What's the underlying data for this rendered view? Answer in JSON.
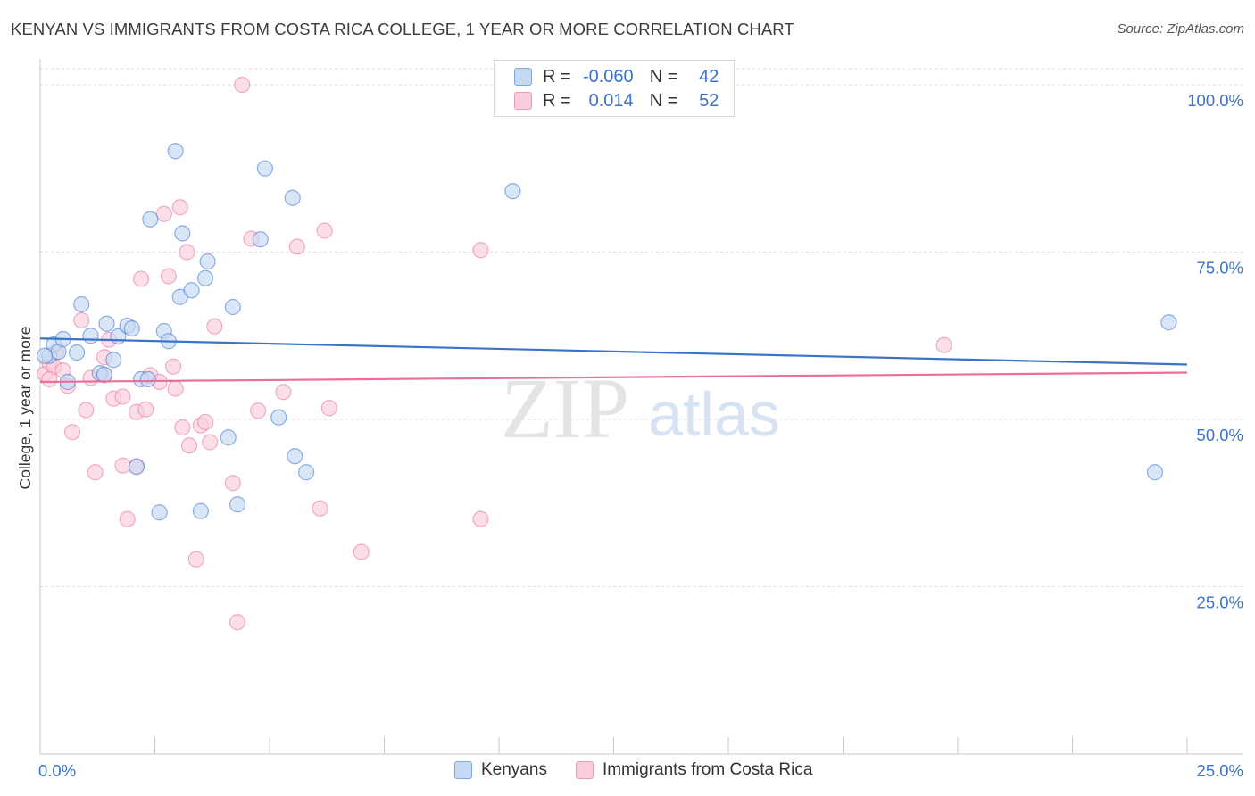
{
  "header": {
    "title": "KENYAN VS IMMIGRANTS FROM COSTA RICA COLLEGE, 1 YEAR OR MORE CORRELATION CHART",
    "source": "Source: ZipAtlas.com"
  },
  "legend": {
    "r_label": "R =",
    "n_label": "N =",
    "series": [
      {
        "name": "Kenyans",
        "r": "-0.060",
        "n": "42",
        "color": "#3a73c9"
      },
      {
        "name": "Immigrants from Costa Rica",
        "r": "0.014",
        "n": "52",
        "color": "#e8709b"
      }
    ]
  },
  "watermark": {
    "zip": "ZIP",
    "atlas": "atlas"
  },
  "chart_data": {
    "type": "scatter",
    "title": "KENYAN VS IMMIGRANTS FROM COSTA RICA COLLEGE, 1 YEAR OR MORE CORRELATION CHART",
    "xlabel": "",
    "ylabel": "College, 1 year or more",
    "xlim": [
      0,
      25
    ],
    "ylim": [
      0,
      102
    ],
    "x_tick_labels": [
      "0.0%",
      "25.0%"
    ],
    "y_ticks": [
      25,
      50,
      75,
      100
    ],
    "y_tick_labels": [
      "25.0%",
      "50.0%",
      "75.0%",
      "100.0%"
    ],
    "grid": true,
    "series": [
      {
        "name": "Kenyans",
        "color": "#3a73c9",
        "fill": "#c5d9f5",
        "trend": [
          [
            0,
            62.1
          ],
          [
            25,
            58.2
          ]
        ],
        "points": [
          [
            0.2,
            59.5
          ],
          [
            0.3,
            61.2
          ],
          [
            0.4,
            60.1
          ],
          [
            0.5,
            62.0
          ],
          [
            0.6,
            55.6
          ],
          [
            0.8,
            60.0
          ],
          [
            0.9,
            67.2
          ],
          [
            1.1,
            62.5
          ],
          [
            1.3,
            56.9
          ],
          [
            1.4,
            56.7
          ],
          [
            1.45,
            64.3
          ],
          [
            1.6,
            58.9
          ],
          [
            1.7,
            62.4
          ],
          [
            1.9,
            64.0
          ],
          [
            2.0,
            63.6
          ],
          [
            2.1,
            42.9
          ],
          [
            2.2,
            56.0
          ],
          [
            2.35,
            56.0
          ],
          [
            2.4,
            79.9
          ],
          [
            2.6,
            36.1
          ],
          [
            2.7,
            63.2
          ],
          [
            2.8,
            61.7
          ],
          [
            2.95,
            90.1
          ],
          [
            3.05,
            68.3
          ],
          [
            3.1,
            77.8
          ],
          [
            3.3,
            69.3
          ],
          [
            3.5,
            36.3
          ],
          [
            3.6,
            71.1
          ],
          [
            3.65,
            73.6
          ],
          [
            4.1,
            47.3
          ],
          [
            4.2,
            66.8
          ],
          [
            4.3,
            37.3
          ],
          [
            4.8,
            76.9
          ],
          [
            4.9,
            87.5
          ],
          [
            5.2,
            50.3
          ],
          [
            5.5,
            83.1
          ],
          [
            5.55,
            44.5
          ],
          [
            5.8,
            42.1
          ],
          [
            10.3,
            84.1
          ],
          [
            24.3,
            42.1
          ],
          [
            24.6,
            64.5
          ],
          [
            0.1,
            59.5
          ]
        ]
      },
      {
        "name": "Immigrants from Costa Rica",
        "color": "#e8709b",
        "fill": "#f9cddb",
        "trend": [
          [
            0,
            55.6
          ],
          [
            25,
            57.0
          ]
        ],
        "points": [
          [
            0.1,
            56.8
          ],
          [
            0.2,
            58.5
          ],
          [
            0.3,
            57.9
          ],
          [
            0.35,
            60.1
          ],
          [
            0.5,
            57.3
          ],
          [
            0.6,
            55.0
          ],
          [
            0.7,
            48.1
          ],
          [
            0.9,
            64.8
          ],
          [
            1.0,
            51.4
          ],
          [
            1.1,
            56.2
          ],
          [
            1.2,
            42.1
          ],
          [
            1.4,
            56.6
          ],
          [
            1.4,
            59.3
          ],
          [
            1.5,
            61.9
          ],
          [
            1.6,
            53.1
          ],
          [
            1.8,
            53.4
          ],
          [
            1.8,
            43.1
          ],
          [
            1.9,
            35.1
          ],
          [
            2.1,
            51.1
          ],
          [
            2.1,
            43.0
          ],
          [
            2.2,
            71.0
          ],
          [
            2.3,
            51.5
          ],
          [
            2.4,
            56.6
          ],
          [
            2.6,
            55.6
          ],
          [
            2.7,
            80.7
          ],
          [
            2.8,
            71.4
          ],
          [
            2.9,
            57.9
          ],
          [
            2.95,
            54.6
          ],
          [
            3.05,
            81.7
          ],
          [
            3.1,
            48.8
          ],
          [
            3.2,
            75.0
          ],
          [
            3.25,
            46.1
          ],
          [
            3.4,
            29.1
          ],
          [
            3.5,
            49.1
          ],
          [
            3.6,
            49.6
          ],
          [
            3.7,
            46.6
          ],
          [
            3.8,
            63.9
          ],
          [
            4.2,
            40.5
          ],
          [
            4.3,
            19.7
          ],
          [
            4.6,
            77.0
          ],
          [
            4.75,
            51.3
          ],
          [
            5.3,
            54.1
          ],
          [
            5.6,
            75.8
          ],
          [
            6.1,
            36.7
          ],
          [
            6.2,
            78.2
          ],
          [
            6.3,
            51.7
          ],
          [
            7.0,
            30.2
          ],
          [
            9.6,
            35.1
          ],
          [
            9.6,
            75.3
          ],
          [
            19.7,
            61.1
          ],
          [
            4.4,
            100.0
          ],
          [
            0.2,
            56.0
          ]
        ]
      }
    ]
  }
}
